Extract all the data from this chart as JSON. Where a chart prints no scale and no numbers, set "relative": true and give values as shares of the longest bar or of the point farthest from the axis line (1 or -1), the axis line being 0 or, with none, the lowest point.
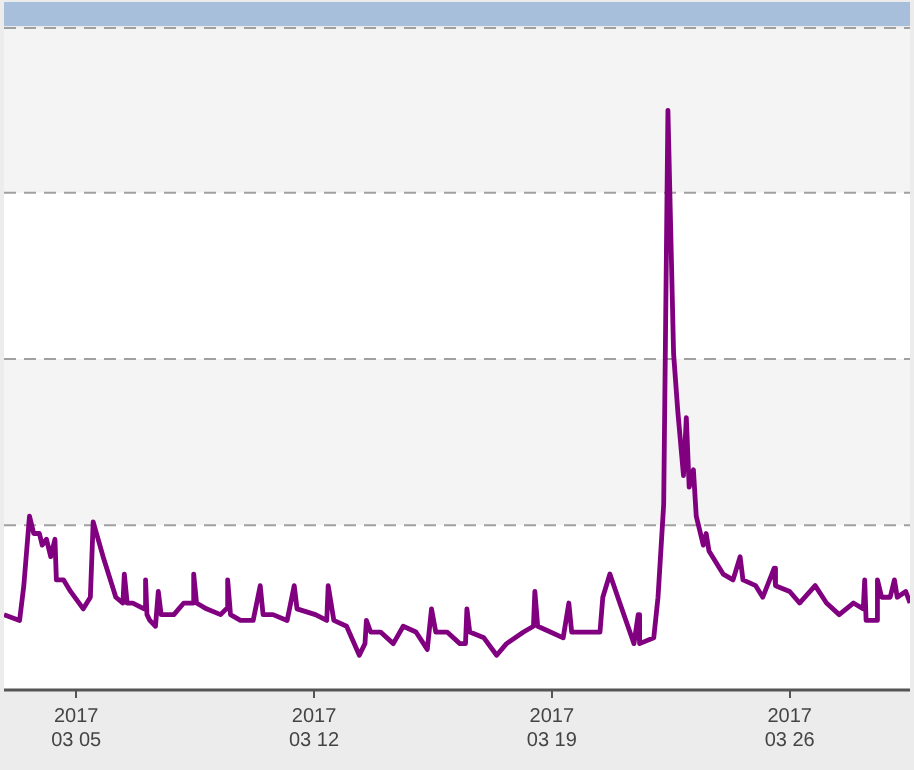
{
  "chart_data": {
    "type": "line",
    "relative": true,
    "color": "#800080",
    "x": [
      "2017-03-02T21:00",
      "2017-03-03T08:00",
      "2017-03-03T11:00",
      "2017-03-03T15:00",
      "2017-03-03T18:00",
      "2017-03-03T22:00",
      "2017-03-04T00:00",
      "2017-03-04T03:00",
      "2017-03-04T06:00",
      "2017-03-04T09:00",
      "2017-03-04T10:00",
      "2017-03-04T15:00",
      "2017-03-04T20:00",
      "2017-03-05T05:00",
      "2017-03-05T10:00",
      "2017-03-05T12:00",
      "2017-03-05T19:00",
      "2017-03-06T04:00",
      "2017-03-06T09:00",
      "2017-03-06T10:00",
      "2017-03-06T12:00",
      "2017-03-06T16:00",
      "2017-03-07T00:00",
      "2017-03-07T01:00",
      "2017-03-07T02:00",
      "2017-03-07T04:00",
      "2017-03-07T08:00",
      "2017-03-07T10:00",
      "2017-03-07T12:00",
      "2017-03-07T21:00",
      "2017-03-08T04:00",
      "2017-03-08T10:00",
      "2017-03-08T11:00",
      "2017-03-08T13:00",
      "2017-03-08T20:00",
      "2017-03-09T06:00",
      "2017-03-09T10:00",
      "2017-03-09T11:00",
      "2017-03-09T13:00",
      "2017-03-09T20:00",
      "2017-03-10T05:00",
      "2017-03-10T10:00",
      "2017-03-10T12:00",
      "2017-03-10T19:00",
      "2017-03-11T05:00",
      "2017-03-11T10:00",
      "2017-03-11T12:00",
      "2017-03-12T01:00",
      "2017-03-12T09:00",
      "2017-03-12T10:00",
      "2017-03-12T14:00",
      "2017-03-12T23:00",
      "2017-03-13T08:00",
      "2017-03-13T12:00",
      "2017-03-13T13:00",
      "2017-03-13T16:00",
      "2017-03-13T23:00",
      "2017-03-14T08:00",
      "2017-03-14T15:00",
      "2017-03-15T00:00",
      "2017-03-15T08:00",
      "2017-03-15T11:00",
      "2017-03-15T14:00",
      "2017-03-15T22:00",
      "2017-03-16T07:00",
      "2017-03-16T11:00",
      "2017-03-16T12:00",
      "2017-03-16T14:00",
      "2017-03-17T00:00",
      "2017-03-17T09:00",
      "2017-03-17T16:00",
      "2017-03-18T04:00",
      "2017-03-18T11:00",
      "2017-03-18T12:00",
      "2017-03-18T14:00",
      "2017-03-18T23:00",
      "2017-03-19T08:00",
      "2017-03-19T12:00",
      "2017-03-19T14:00",
      "2017-03-20T10:00",
      "2017-03-20T12:00",
      "2017-03-20T17:00",
      "2017-03-21T00:00",
      "2017-03-21T10:00",
      "2017-03-21T13:00",
      "2017-03-21T14:00",
      "2017-03-22T00:00",
      "2017-03-22T03:00",
      "2017-03-22T07:00",
      "2017-03-22T10:00",
      "2017-03-22T14:00",
      "2017-03-22T17:00",
      "2017-03-22T21:00",
      "2017-03-22T23:00",
      "2017-03-23T01:00",
      "2017-03-23T04:00",
      "2017-03-23T06:00",
      "2017-03-23T11:00",
      "2017-03-23T13:00",
      "2017-03-23T15:00",
      "2017-03-24T01:00",
      "2017-03-24T08:00",
      "2017-03-24T13:00",
      "2017-03-24T15:00",
      "2017-03-25T00:00",
      "2017-03-25T05:00",
      "2017-03-25T13:00",
      "2017-03-25T14:00",
      "2017-03-26T00:00",
      "2017-03-26T07:00",
      "2017-03-26T18:00",
      "2017-03-27T02:00",
      "2017-03-27T11:00",
      "2017-03-27T21:00",
      "2017-03-28T04:00",
      "2017-03-28T05:00",
      "2017-03-28T06:00",
      "2017-03-28T13:00",
      "2017-03-28T14:00",
      "2017-03-28T17:00",
      "2017-03-28T23:00",
      "2017-03-29T02:00",
      "2017-03-29T04:00",
      "2017-03-29T10:00",
      "2017-03-29T13:00"
    ],
    "values": [
      0.13,
      0.12,
      0.18,
      0.3,
      0.27,
      0.27,
      0.25,
      0.26,
      0.23,
      0.26,
      0.19,
      0.19,
      0.17,
      0.14,
      0.16,
      0.29,
      0.23,
      0.16,
      0.15,
      0.2,
      0.15,
      0.15,
      0.14,
      0.19,
      0.13,
      0.12,
      0.11,
      0.17,
      0.13,
      0.13,
      0.15,
      0.15,
      0.2,
      0.15,
      0.14,
      0.13,
      0.14,
      0.19,
      0.13,
      0.12,
      0.12,
      0.18,
      0.13,
      0.13,
      0.12,
      0.18,
      0.14,
      0.13,
      0.12,
      0.18,
      0.12,
      0.11,
      0.06,
      0.08,
      0.12,
      0.1,
      0.1,
      0.08,
      0.11,
      0.1,
      0.07,
      0.14,
      0.1,
      0.1,
      0.08,
      0.08,
      0.14,
      0.1,
      0.09,
      0.06,
      0.08,
      0.1,
      0.11,
      0.17,
      0.11,
      0.1,
      0.09,
      0.15,
      0.1,
      0.1,
      0.16,
      0.2,
      0.15,
      0.08,
      0.13,
      0.08,
      0.09,
      0.16,
      0.32,
      1.0,
      0.58,
      0.48,
      0.37,
      0.47,
      0.35,
      0.38,
      0.3,
      0.25,
      0.27,
      0.24,
      0.2,
      0.19,
      0.23,
      0.19,
      0.18,
      0.16,
      0.21,
      0.18,
      0.17,
      0.15,
      0.18,
      0.15,
      0.13,
      0.15,
      0.14,
      0.19,
      0.12,
      0.12,
      0.19,
      0.16,
      0.16,
      0.19,
      0.16,
      0.17,
      0.15
    ],
    "xlim": [
      "2017-03-02T21:00",
      "2017-03-29T13:00"
    ],
    "xticks": [
      {
        "value": "2017-03-05",
        "label": "2017\n03 05"
      },
      {
        "value": "2017-03-12",
        "label": "2017\n03 12"
      },
      {
        "value": "2017-03-19",
        "label": "2017\n03 19"
      },
      {
        "value": "2017-03-26",
        "label": "2017\n03 26"
      }
    ],
    "bands": [
      {
        "axis": "y",
        "from": 0.284,
        "to": 0.571,
        "color": "#f4f4f4"
      },
      {
        "axis": "y",
        "from": 0.858,
        "to": 1.142,
        "color": "#f4f4f4"
      }
    ],
    "marker": "none",
    "line_style": "solid",
    "legend": false
  }
}
